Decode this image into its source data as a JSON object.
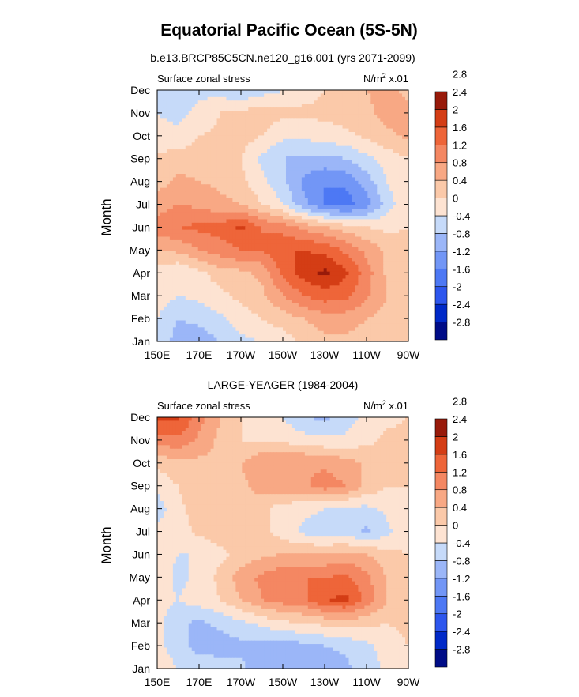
{
  "page": {
    "title": "Equatorial Pacific Ocean (5S-5N)"
  },
  "colorbar": {
    "fill_colors": [
      "#000c87",
      "#0029c8",
      "#2d56ee",
      "#4d78f4",
      "#7296f6",
      "#9bb6f8",
      "#c6daf9",
      "#fde3d2",
      "#fbc9a9",
      "#f8a884",
      "#f48762",
      "#ee6539",
      "#d43d15",
      "#981a0a"
    ],
    "labels": [
      "-2.8",
      "-2.4",
      "-2",
      "-1.6",
      "-1.2",
      "-0.8",
      "-0.4",
      "0",
      "0.4",
      "0.8",
      "1.2",
      "1.6",
      "2",
      "2.4",
      "2.8"
    ]
  },
  "chart_data": [
    {
      "type": "heatmap",
      "title": "b.e13.BRCP85C5CN.ne120_g16.001 (yrs 2071-2099)",
      "left_string": "Surface zonal stress",
      "units_label": "N/m",
      "units_exp": "2",
      "units_scale": " x.01",
      "ylabel": "Month",
      "x_range": [
        150,
        270
      ],
      "x_ticks": [
        150,
        170,
        190,
        210,
        230,
        250,
        270
      ],
      "x_tick_labels": [
        "150E",
        "170E",
        "170W",
        "150W",
        "130W",
        "110W",
        "90W"
      ],
      "y_tick_labels": [
        "Jan",
        "Feb",
        "Mar",
        "Apr",
        "May",
        "Jun",
        "Jul",
        "Aug",
        "Sep",
        "Oct",
        "Nov",
        "Dec"
      ],
      "x": [
        150,
        160,
        170,
        180,
        190,
        200,
        210,
        220,
        230,
        240,
        250,
        260,
        270
      ],
      "values": [
        [
          -0.5,
          -1.0,
          -1.0,
          -0.8,
          -0.5,
          -0.4,
          -0.2,
          0.1,
          0.3,
          0.3,
          0.2,
          0.1,
          0.0
        ],
        [
          -0.4,
          -0.8,
          -0.7,
          -0.5,
          -0.2,
          0.0,
          0.2,
          0.4,
          0.6,
          0.6,
          0.4,
          0.2,
          0.0
        ],
        [
          -0.2,
          -0.4,
          -0.3,
          -0.1,
          0.1,
          0.3,
          0.8,
          1.2,
          1.4,
          1.3,
          0.9,
          0.4,
          0.1
        ],
        [
          -0.2,
          -0.4,
          -0.1,
          0.2,
          0.3,
          0.5,
          1.3,
          1.8,
          2.1,
          1.7,
          1.0,
          0.3,
          0.1
        ],
        [
          0.4,
          0.5,
          0.8,
          1.0,
          1.2,
          1.2,
          1.6,
          1.6,
          1.5,
          1.1,
          0.7,
          0.3,
          0.1
        ],
        [
          1.0,
          1.2,
          1.3,
          1.4,
          1.7,
          1.2,
          1.0,
          0.7,
          0.4,
          0.2,
          0.0,
          -0.1,
          0.0
        ],
        [
          0.6,
          0.8,
          0.7,
          0.5,
          0.4,
          0.0,
          -0.4,
          -1.1,
          -1.6,
          -1.8,
          -1.4,
          -0.6,
          0.0
        ],
        [
          0.2,
          0.5,
          0.4,
          0.3,
          0.1,
          -0.3,
          -0.7,
          -1.3,
          -1.6,
          -1.5,
          -1.0,
          -0.4,
          0.0
        ],
        [
          0.1,
          0.2,
          0.2,
          0.1,
          0.0,
          -0.5,
          -0.8,
          -0.9,
          -0.9,
          -0.8,
          -0.5,
          -0.2,
          0.0
        ],
        [
          -0.3,
          -0.3,
          0.0,
          0.1,
          0.2,
          0.0,
          -0.3,
          -0.3,
          -0.2,
          -0.1,
          0.1,
          0.3,
          0.5
        ],
        [
          -0.4,
          -0.5,
          -0.3,
          0.0,
          0.1,
          0.2,
          0.1,
          0.1,
          0.1,
          0.2,
          0.3,
          0.6,
          0.5
        ],
        [
          -0.4,
          -0.5,
          -0.5,
          -0.6,
          -0.8,
          -0.6,
          -0.4,
          -0.2,
          0.0,
          0.2,
          0.4,
          0.5,
          0.3
        ]
      ]
    },
    {
      "type": "heatmap",
      "title": "LARGE-YEAGER (1984-2004)",
      "left_string": "Surface zonal stress",
      "units_label": "N/m",
      "units_exp": "2",
      "units_scale": " x.01",
      "ylabel": "Month",
      "x_range": [
        150,
        270
      ],
      "x_ticks": [
        150,
        170,
        190,
        210,
        230,
        250,
        270
      ],
      "x_tick_labels": [
        "150E",
        "170E",
        "170W",
        "150W",
        "130W",
        "110W",
        "90W"
      ],
      "y_tick_labels": [
        "Jan",
        "Feb",
        "Mar",
        "Apr",
        "May",
        "Jun",
        "Jul",
        "Aug",
        "Sep",
        "Oct",
        "Nov",
        "Dec"
      ],
      "x": [
        150,
        160,
        170,
        180,
        190,
        200,
        210,
        220,
        230,
        240,
        250,
        260,
        270
      ],
      "values": [
        [
          -0.2,
          -0.4,
          -0.5,
          -0.6,
          -0.7,
          -1.1,
          -1.2,
          -1.0,
          -1.1,
          -0.9,
          -0.6,
          -0.3,
          0.0
        ],
        [
          -0.3,
          -0.6,
          -1.0,
          -1.0,
          -0.9,
          -0.9,
          -1.0,
          -0.9,
          -0.8,
          -0.7,
          -0.5,
          -0.2,
          0.0
        ],
        [
          -0.3,
          -0.7,
          -0.9,
          -0.7,
          -0.5,
          -0.3,
          -0.1,
          0.0,
          0.1,
          0.2,
          0.1,
          0.0,
          0.1
        ],
        [
          -0.2,
          -0.4,
          -0.2,
          0.0,
          0.4,
          0.8,
          1.0,
          1.1,
          1.6,
          1.7,
          1.1,
          0.4,
          0.1
        ],
        [
          -0.2,
          -0.5,
          -0.3,
          0.1,
          0.6,
          0.9,
          1.1,
          1.2,
          1.2,
          1.3,
          0.9,
          0.4,
          0.1
        ],
        [
          -0.2,
          -0.4,
          -0.4,
          -0.1,
          0.1,
          0.3,
          0.4,
          0.4,
          0.4,
          0.5,
          0.4,
          0.1,
          0.0
        ],
        [
          -0.3,
          -0.2,
          0.1,
          0.2,
          0.2,
          0.1,
          -0.2,
          -0.5,
          -0.6,
          -0.6,
          -0.9,
          -0.5,
          -0.1
        ],
        [
          -0.6,
          -0.1,
          0.2,
          0.3,
          0.2,
          0.1,
          -0.2,
          -0.3,
          -0.4,
          -0.5,
          -0.5,
          -0.3,
          -0.1
        ],
        [
          -0.3,
          0.0,
          0.2,
          0.3,
          0.3,
          0.6,
          0.7,
          0.7,
          1.0,
          0.8,
          0.3,
          0.0,
          0.0
        ],
        [
          0.1,
          0.3,
          0.3,
          0.3,
          0.4,
          0.7,
          0.8,
          0.8,
          0.7,
          0.6,
          0.3,
          0.1,
          0.1
        ],
        [
          1.0,
          1.1,
          0.7,
          0.3,
          0.0,
          0.0,
          -0.1,
          -0.2,
          -0.3,
          -0.3,
          -0.1,
          0.1,
          0.1
        ],
        [
          1.7,
          1.7,
          1.0,
          0.4,
          0.0,
          -0.3,
          -0.4,
          -0.8,
          -0.9,
          -0.6,
          -0.3,
          -0.1,
          0.0
        ]
      ]
    }
  ]
}
